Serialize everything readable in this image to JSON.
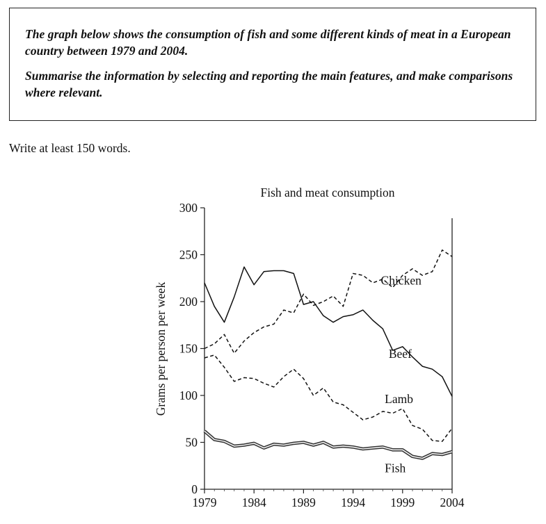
{
  "task": {
    "paragraph1": "The graph below shows the consumption of fish and some different kinds of meat in a European country between 1979 and 2004.",
    "paragraph2": "Summarise the information by selecting and reporting the main features, and make comparisons where relevant."
  },
  "instruction": "Write at least 150 words.",
  "chart_data": {
    "type": "line",
    "title": "Fish and meat consumption",
    "xlabel": "",
    "ylabel": "Grams per person per week",
    "xlim": [
      1979,
      2004
    ],
    "ylim": [
      0,
      300
    ],
    "x_ticks": [
      1979,
      1984,
      1989,
      1994,
      1999,
      2004
    ],
    "y_ticks": [
      0,
      50,
      100,
      150,
      200,
      250,
      300
    ],
    "grid": false,
    "x": [
      1979,
      1980,
      1981,
      1982,
      1983,
      1984,
      1985,
      1986,
      1987,
      1988,
      1989,
      1990,
      1991,
      1992,
      1993,
      1994,
      1995,
      1996,
      1997,
      1998,
      1999,
      2000,
      2001,
      2002,
      2003,
      2004
    ],
    "series": [
      {
        "name": "Chicken",
        "style": "dashed",
        "values": [
          150,
          155,
          165,
          145,
          158,
          167,
          173,
          176,
          191,
          188,
          208,
          196,
          200,
          206,
          195,
          230,
          228,
          220,
          224,
          215,
          228,
          235,
          228,
          232,
          255,
          248
        ]
      },
      {
        "name": "Beef",
        "style": "solid",
        "values": [
          220,
          195,
          178,
          205,
          237,
          218,
          232,
          233,
          233,
          230,
          197,
          200,
          185,
          178,
          184,
          186,
          191,
          180,
          171,
          148,
          152,
          141,
          131,
          128,
          120,
          99
        ]
      },
      {
        "name": "Lamb",
        "style": "dashed",
        "values": [
          140,
          143,
          130,
          115,
          119,
          118,
          113,
          109,
          120,
          128,
          118,
          100,
          108,
          93,
          90,
          82,
          74,
          77,
          83,
          81,
          86,
          68,
          64,
          52,
          51,
          65
        ]
      },
      {
        "name": "Fish",
        "style": "double",
        "values": [
          62,
          53,
          51,
          46,
          47,
          49,
          44,
          48,
          47,
          49,
          50,
          47,
          50,
          45,
          46,
          45,
          43,
          44,
          45,
          42,
          42,
          35,
          33,
          38,
          37,
          40
        ]
      }
    ],
    "series_labels": [
      "Chicken",
      "Beef",
      "Lamb",
      "Fish"
    ]
  }
}
